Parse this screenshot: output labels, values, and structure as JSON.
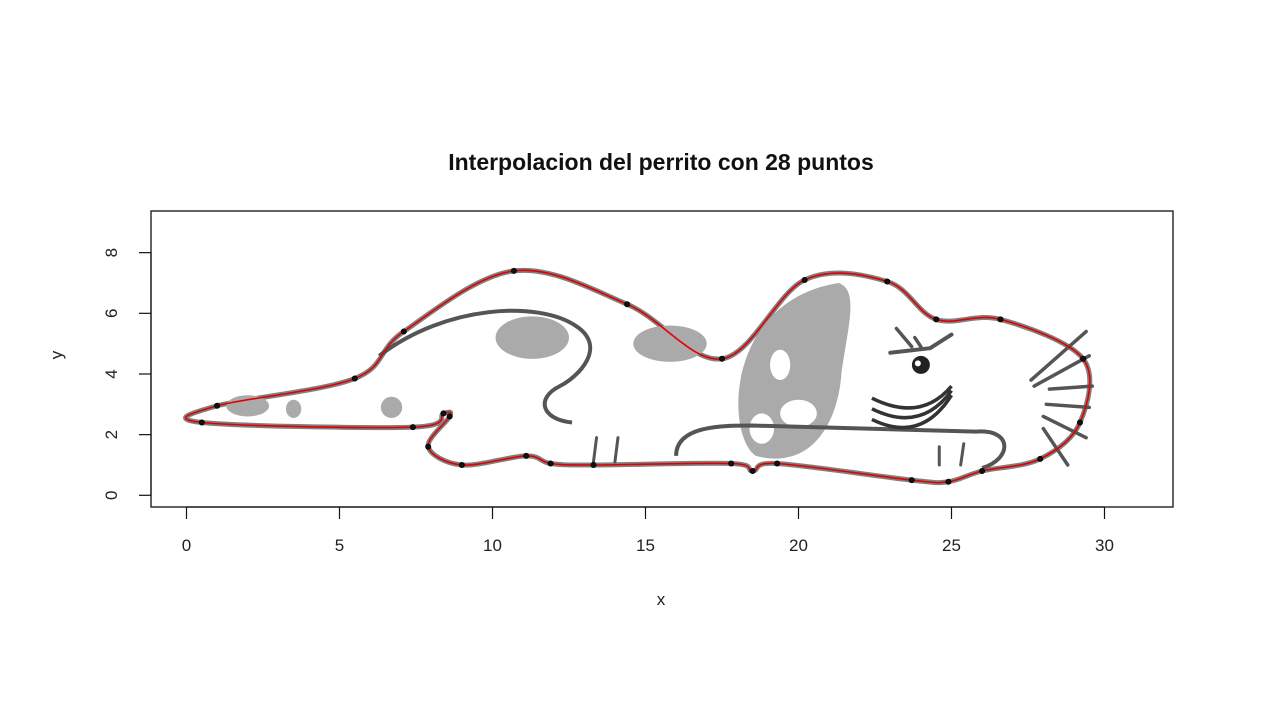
{
  "chart_data": {
    "type": "line",
    "title": "Interpolacion del perrito con 28 puntos",
    "xlabel": "x",
    "ylabel": "y",
    "xlim": [
      -1.2,
      32.2
    ],
    "ylim": [
      -0.4,
      9.3
    ],
    "x_ticks": [
      0,
      5,
      10,
      15,
      20,
      25,
      30
    ],
    "y_ticks": [
      0,
      2,
      4,
      6,
      8
    ],
    "grid": false,
    "legend": "none",
    "colors": {
      "interpolation": "#e00000",
      "points": "#111111",
      "drawing_outline": "#555555",
      "drawing_spots": "#aaaaaa"
    },
    "points": {
      "x": [
        0.5,
        1.0,
        5.5,
        7.1,
        10.7,
        14.4,
        17.5,
        20.2,
        22.9,
        24.5,
        26.6,
        29.3,
        29.2,
        27.9,
        26.0,
        24.9,
        23.7,
        19.3,
        18.5,
        17.8,
        13.3,
        11.9,
        11.1,
        9.0,
        7.9,
        8.6,
        8.4,
        7.4
      ],
      "y": [
        2.4,
        2.95,
        3.85,
        5.4,
        7.4,
        6.3,
        4.5,
        7.1,
        7.05,
        5.8,
        5.8,
        4.5,
        2.4,
        1.2,
        0.8,
        0.45,
        0.5,
        1.05,
        0.8,
        1.05,
        1.0,
        1.05,
        1.3,
        1.0,
        1.6,
        2.6,
        2.7,
        2.25
      ]
    }
  }
}
